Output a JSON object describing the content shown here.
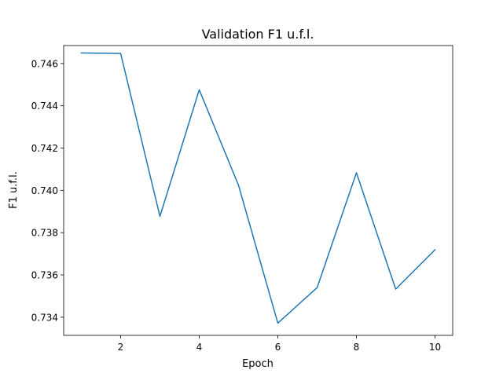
{
  "chart_data": {
    "type": "line",
    "title": "Validation F1 u.f.l.",
    "xlabel": "Epoch",
    "ylabel": "F1 u.f.l.",
    "x": [
      1,
      2,
      3,
      4,
      5,
      6,
      7,
      8,
      9,
      10
    ],
    "series": [
      {
        "values": [
          0.7465,
          0.74648,
          0.73877,
          0.74476,
          0.74024,
          0.73372,
          0.7354,
          0.74083,
          0.73533,
          0.73719
        ],
        "color": "#1f77b4"
      }
    ],
    "xlim": [
      0.55,
      10.45
    ],
    "ylim": [
      0.73314,
      0.74685
    ],
    "xticks": [
      2,
      4,
      6,
      8,
      10
    ],
    "xtick_labels": [
      "2",
      "4",
      "6",
      "8",
      "10"
    ],
    "yticks": [
      0.734,
      0.736,
      0.738,
      0.74,
      0.742,
      0.744,
      0.746
    ],
    "ytick_labels": [
      "0.734",
      "0.736",
      "0.738",
      "0.740",
      "0.742",
      "0.744",
      "0.746"
    ],
    "grid": false,
    "legend": false
  }
}
